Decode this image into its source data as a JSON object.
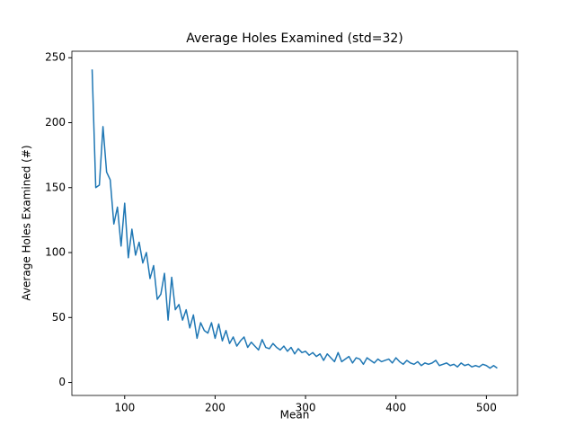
{
  "chart_data": {
    "type": "line",
    "title": "Average Holes Examined (std=32)",
    "x_label": "Mean",
    "y_label": "Average Holes Examined (#)",
    "x": [
      64,
      68,
      72,
      76,
      80,
      84,
      88,
      92,
      96,
      100,
      104,
      108,
      112,
      116,
      120,
      124,
      128,
      132,
      136,
      140,
      144,
      148,
      152,
      156,
      160,
      164,
      168,
      172,
      176,
      180,
      184,
      188,
      192,
      196,
      200,
      204,
      208,
      212,
      216,
      220,
      224,
      228,
      232,
      236,
      240,
      244,
      248,
      252,
      256,
      260,
      264,
      268,
      272,
      276,
      280,
      284,
      288,
      292,
      296,
      300,
      304,
      308,
      312,
      316,
      320,
      324,
      328,
      332,
      336,
      340,
      344,
      348,
      352,
      356,
      360,
      364,
      368,
      372,
      376,
      380,
      384,
      388,
      392,
      396,
      400,
      404,
      408,
      412,
      416,
      420,
      424,
      428,
      432,
      436,
      440,
      444,
      448,
      452,
      456,
      460,
      464,
      468,
      472,
      476,
      480,
      484,
      488,
      492,
      496,
      500,
      504,
      508,
      512
    ],
    "series": [
      {
        "name": "Average Holes Examined",
        "color": "#1f77b4",
        "values": [
          241,
          150,
          152,
          197,
          162,
          156,
          122,
          135,
          105,
          138,
          96,
          118,
          98,
          108,
          92,
          100,
          80,
          90,
          64,
          68,
          84,
          48,
          81,
          56,
          60,
          48,
          56,
          42,
          52,
          34,
          46,
          40,
          38,
          46,
          34,
          45,
          32,
          40,
          30,
          35,
          28,
          32,
          35,
          27,
          31,
          28,
          25,
          33,
          27,
          26,
          30,
          27,
          25,
          28,
          24,
          27,
          22,
          26,
          23,
          24,
          21,
          23,
          20,
          22,
          17,
          22,
          19,
          16,
          23,
          16,
          18,
          20,
          15,
          19,
          18,
          14,
          19,
          17,
          15,
          18,
          16,
          17,
          18,
          15,
          19,
          16,
          14,
          17,
          15,
          14,
          16,
          13,
          15,
          14,
          15,
          17,
          13,
          14,
          15,
          13,
          14,
          12,
          15,
          13,
          14,
          12,
          13,
          12,
          14,
          13,
          11,
          13,
          11
        ]
      }
    ],
    "xlim": [
      41.6,
      534.4
    ],
    "ylim": [
      -10,
      255
    ],
    "xticks": [
      100,
      200,
      300,
      400,
      500
    ],
    "yticks": [
      0,
      50,
      100,
      150,
      200,
      250
    ]
  }
}
